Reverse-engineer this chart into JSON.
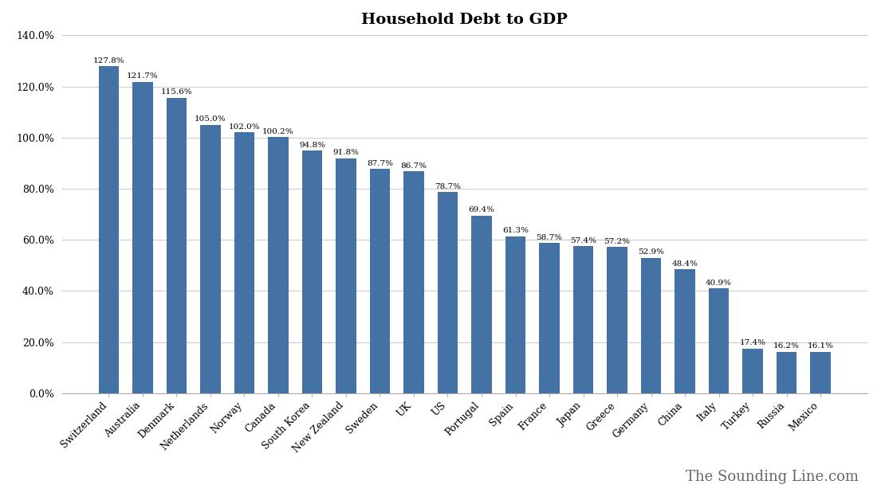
{
  "title": "Household Debt to GDP",
  "categories": [
    "Switzerland",
    "Australia",
    "Denmark",
    "Netherlands",
    "Norway",
    "Canada",
    "South Korea",
    "New Zealand",
    "Sweden",
    "UK",
    "US",
    "Portugal",
    "Spain",
    "France",
    "Japan",
    "Greece",
    "Germany",
    "China",
    "Italy",
    "Turkey",
    "Russia",
    "Mexico"
  ],
  "values": [
    127.8,
    121.7,
    115.6,
    105.0,
    102.0,
    100.2,
    94.8,
    91.8,
    87.7,
    86.7,
    78.7,
    69.4,
    61.3,
    58.7,
    57.4,
    57.2,
    52.9,
    48.4,
    40.9,
    17.4,
    16.2,
    16.1
  ],
  "labels": [
    "127.8%",
    "121.7%",
    "115.6%",
    "105.0%",
    "102.0%",
    "100.2%",
    "94.8%",
    "91.8%",
    "87.7%",
    "86.7%",
    "78.7%",
    "69.4%",
    "61.3%",
    "58.7%",
    "57.4%",
    "57.2%",
    "52.9%",
    "48.4%",
    "40.9%",
    "17.4%",
    "16.2%",
    "16.1%"
  ],
  "bar_color": "#4472a4",
  "background_color": "#ffffff",
  "ylim": [
    0,
    140
  ],
  "yticks": [
    0,
    20,
    40,
    60,
    80,
    100,
    120,
    140
  ],
  "ytick_labels": [
    "0.0%",
    "20.0%",
    "40.0%",
    "60.0%",
    "80.0%",
    "100.0%",
    "120.0%",
    "140.0%"
  ],
  "watermark": "The Sounding Line.com",
  "title_fontsize": 14,
  "label_fontsize": 7.5,
  "tick_fontsize": 9,
  "watermark_fontsize": 13
}
